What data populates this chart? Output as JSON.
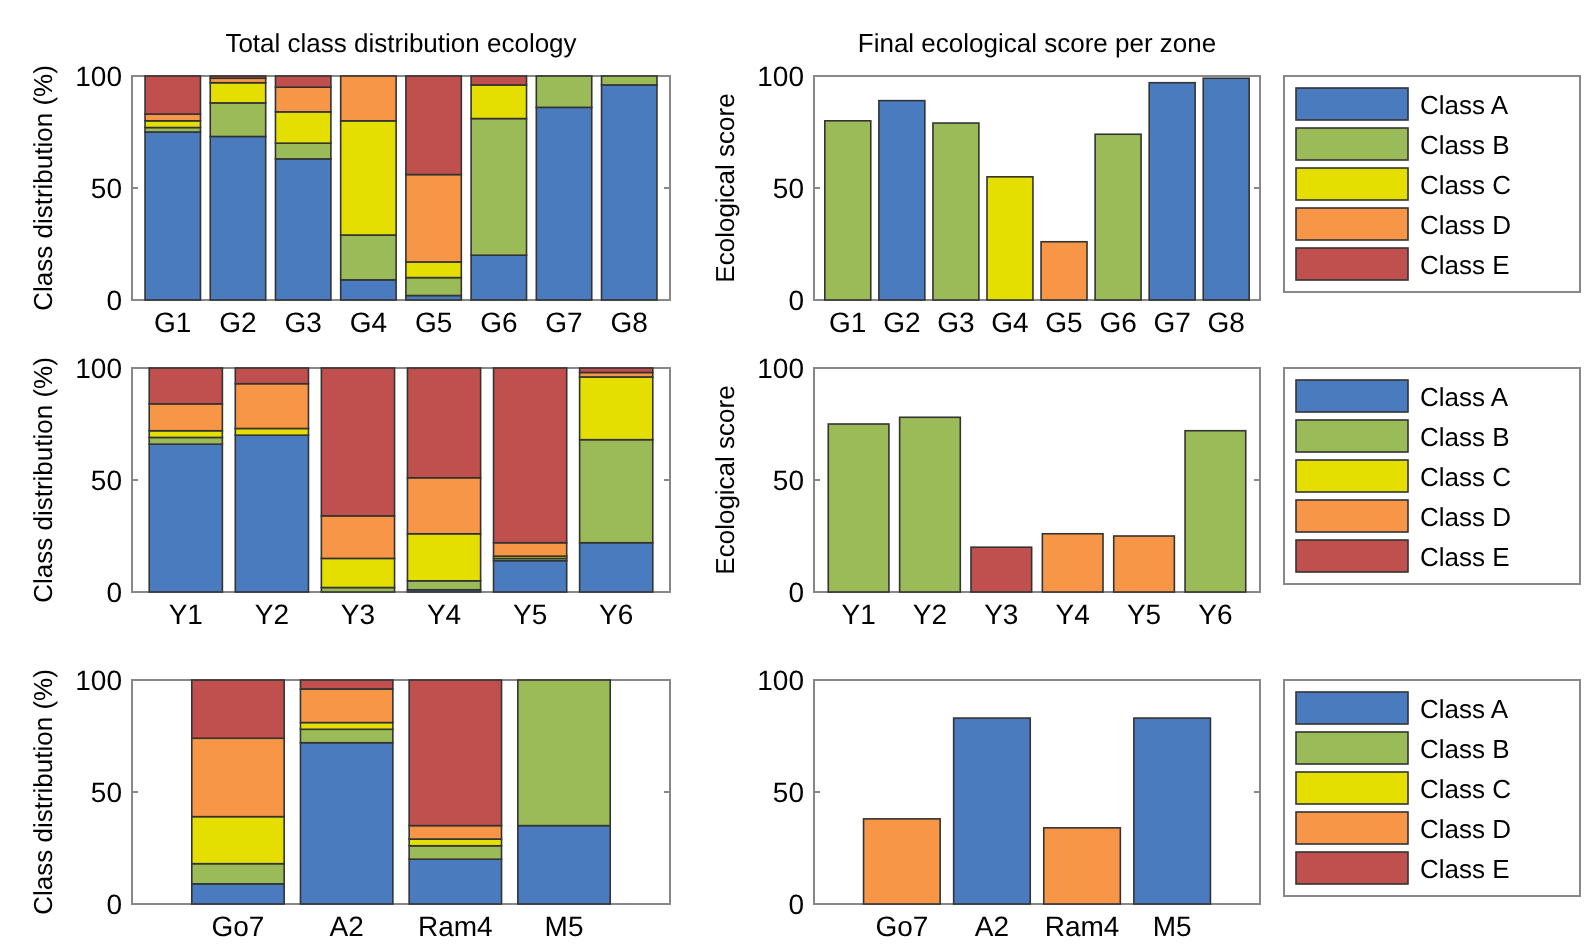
{
  "chart_data": [
    {
      "type": "bar",
      "title": "Total class distribution ecology",
      "ylabel": "Class distribution (%)",
      "categories": [
        "G1",
        "G2",
        "G3",
        "G4",
        "G5",
        "G6",
        "G7",
        "G8"
      ],
      "stacked": true,
      "ylim": [
        0,
        100
      ],
      "yticks": [
        0,
        50,
        100
      ],
      "series": [
        {
          "color": "#4a7bbf",
          "values": [
            75,
            73,
            63,
            9,
            2,
            20,
            86,
            96
          ]
        },
        {
          "color": "#9bbb59",
          "values": [
            2,
            15,
            7,
            20,
            8,
            61,
            14,
            4
          ]
        },
        {
          "color": "#e4df00",
          "values": [
            3,
            9,
            14,
            51,
            7,
            15,
            0,
            0
          ]
        },
        {
          "color": "#f79646",
          "values": [
            3,
            2,
            11,
            20,
            39,
            0,
            0,
            0
          ]
        },
        {
          "color": "#c0504d",
          "values": [
            17,
            1,
            5,
            0,
            44,
            4,
            0,
            0
          ]
        }
      ]
    },
    {
      "type": "bar",
      "title": "Final ecological score per zone",
      "ylabel": "Ecological score",
      "categories": [
        "G1",
        "G2",
        "G3",
        "G4",
        "G5",
        "G6",
        "G7",
        "G8"
      ],
      "stacked": true,
      "ylim": [
        0,
        100
      ],
      "yticks": [
        0,
        50,
        100
      ],
      "legend": "right",
      "series": [
        {
          "name": "Class A",
          "color": "#4a7bbf",
          "values": [
            null,
            89,
            null,
            null,
            null,
            null,
            97,
            99
          ]
        },
        {
          "name": "Class B",
          "color": "#9bbb59",
          "values": [
            80,
            null,
            79,
            null,
            null,
            74,
            null,
            null
          ]
        },
        {
          "name": "Class C",
          "color": "#e4df00",
          "values": [
            null,
            null,
            null,
            55,
            null,
            null,
            null,
            null
          ]
        },
        {
          "name": "Class D",
          "color": "#f79646",
          "values": [
            null,
            null,
            null,
            null,
            26,
            null,
            null,
            null
          ]
        },
        {
          "name": "Class E",
          "color": "#c0504d",
          "values": [
            null,
            null,
            null,
            null,
            null,
            null,
            null,
            null
          ]
        }
      ]
    },
    {
      "type": "bar",
      "ylabel": "Class distribution (%)",
      "categories": [
        "Y1",
        "Y2",
        "Y3",
        "Y4",
        "Y5",
        "Y6"
      ],
      "stacked": true,
      "ylim": [
        0,
        100
      ],
      "yticks": [
        0,
        50,
        100
      ],
      "series": [
        {
          "color": "#4a7bbf",
          "values": [
            66,
            70,
            0,
            1,
            14,
            22
          ]
        },
        {
          "color": "#9bbb59",
          "values": [
            3,
            0,
            2,
            4,
            1,
            46
          ]
        },
        {
          "color": "#e4df00",
          "values": [
            3,
            3,
            13,
            21,
            1,
            28
          ]
        },
        {
          "color": "#f79646",
          "values": [
            12,
            20,
            19,
            25,
            6,
            2
          ]
        },
        {
          "color": "#c0504d",
          "values": [
            16,
            7,
            66,
            49,
            78,
            2
          ]
        }
      ]
    },
    {
      "type": "bar",
      "ylabel": "Ecological score",
      "categories": [
        "Y1",
        "Y2",
        "Y3",
        "Y4",
        "Y5",
        "Y6"
      ],
      "stacked": true,
      "ylim": [
        0,
        100
      ],
      "yticks": [
        0,
        50,
        100
      ],
      "legend": "right",
      "series": [
        {
          "name": "Class A",
          "color": "#4a7bbf",
          "values": [
            null,
            null,
            null,
            null,
            null,
            null
          ]
        },
        {
          "name": "Class B",
          "color": "#9bbb59",
          "values": [
            75,
            78,
            null,
            null,
            null,
            72
          ]
        },
        {
          "name": "Class C",
          "color": "#e4df00",
          "values": [
            null,
            null,
            null,
            null,
            null,
            null
          ]
        },
        {
          "name": "Class D",
          "color": "#f79646",
          "values": [
            null,
            null,
            null,
            26,
            25,
            null
          ]
        },
        {
          "name": "Class E",
          "color": "#c0504d",
          "values": [
            null,
            null,
            20,
            null,
            null,
            null
          ]
        }
      ]
    },
    {
      "type": "bar",
      "ylabel": "Class distribution (%)",
      "categories": [
        "Go7",
        "A2",
        "Ram4",
        "M5"
      ],
      "stacked": true,
      "ylim": [
        0,
        100
      ],
      "yticks": [
        0,
        50,
        100
      ],
      "series": [
        {
          "color": "#4a7bbf",
          "values": [
            9,
            72,
            20,
            35
          ]
        },
        {
          "color": "#9bbb59",
          "values": [
            9,
            6,
            6,
            65
          ]
        },
        {
          "color": "#e4df00",
          "values": [
            21,
            3,
            3,
            0
          ]
        },
        {
          "color": "#f79646",
          "values": [
            35,
            15,
            6,
            0
          ]
        },
        {
          "color": "#c0504d",
          "values": [
            26,
            4,
            65,
            0
          ]
        }
      ]
    },
    {
      "type": "bar",
      "categories": [
        "Go7",
        "A2",
        "Ram4",
        "M5"
      ],
      "stacked": true,
      "ylim": [
        0,
        100
      ],
      "yticks": [
        0,
        50,
        100
      ],
      "legend": "right",
      "series": [
        {
          "name": "Class A",
          "color": "#4a7bbf",
          "values": [
            null,
            83,
            null,
            83
          ]
        },
        {
          "name": "Class B",
          "color": "#9bbb59",
          "values": [
            null,
            null,
            null,
            null
          ]
        },
        {
          "name": "Class C",
          "color": "#e4df00",
          "values": [
            null,
            null,
            null,
            null
          ]
        },
        {
          "name": "Class D",
          "color": "#f79646",
          "values": [
            38,
            null,
            34,
            null
          ]
        },
        {
          "name": "Class E",
          "color": "#c0504d",
          "values": [
            null,
            null,
            null,
            null
          ]
        }
      ]
    }
  ]
}
